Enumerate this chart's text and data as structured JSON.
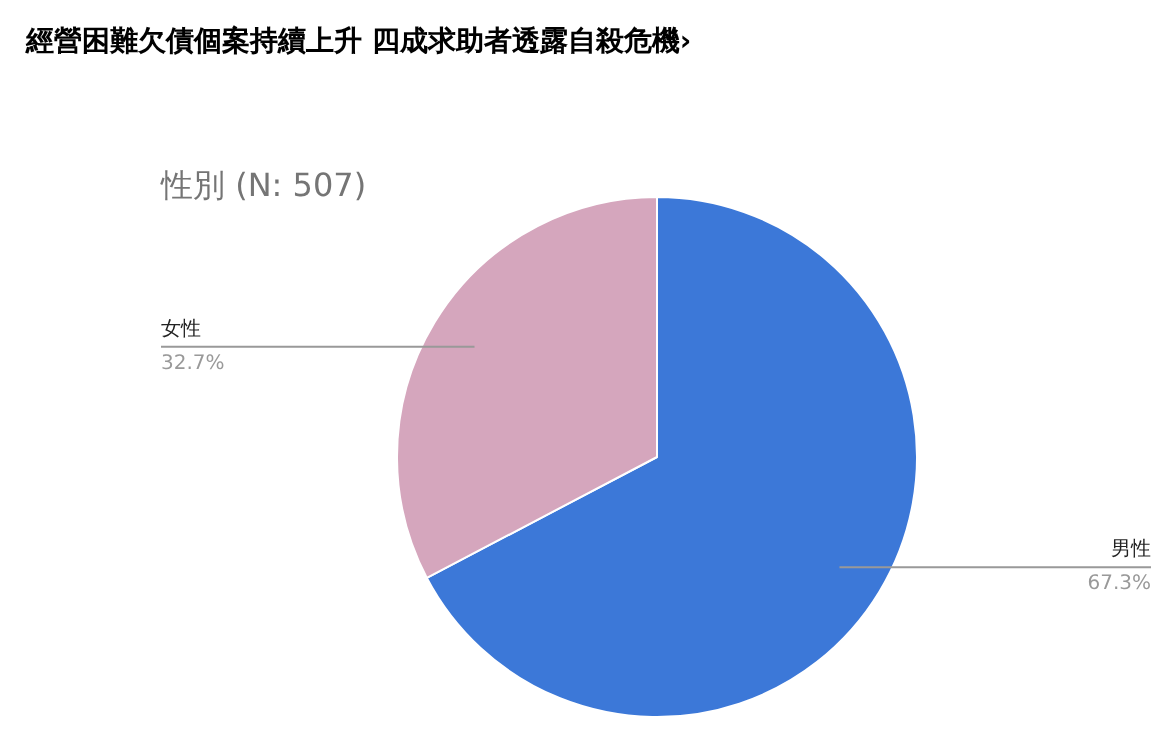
{
  "chart_data": {
    "type": "pie",
    "title": "經營困難欠債個案持續上升  四成求助者透露自殺危機›",
    "subtitle": "性別 (N: 507)",
    "categories": [
      "男性",
      "女性"
    ],
    "values": [
      67.3,
      32.7
    ],
    "colors": [
      "#3c78d8",
      "#d5a6bd"
    ],
    "value_labels": [
      "67.3%",
      "32.7%"
    ]
  }
}
